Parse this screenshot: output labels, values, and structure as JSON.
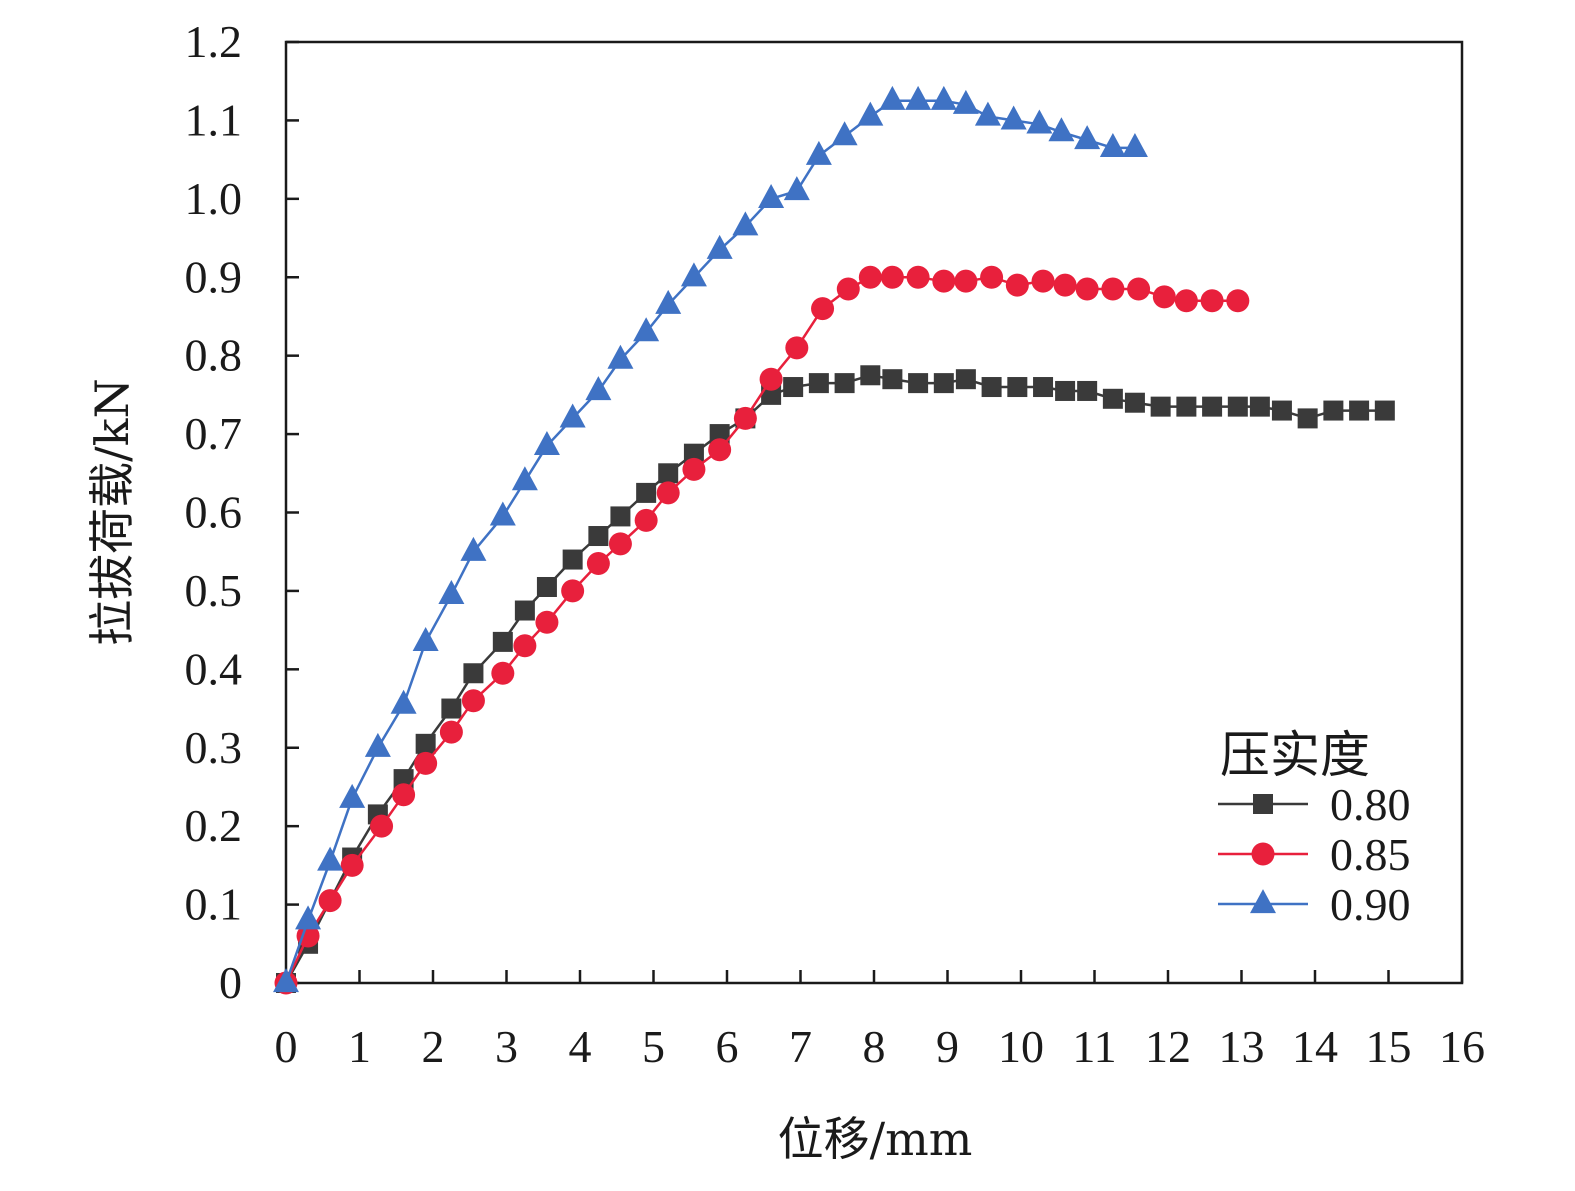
{
  "chart_data": {
    "type": "line",
    "xlabel": "位移/mm",
    "ylabel": "拉拔荷载/kN",
    "xlim": [
      0,
      16
    ],
    "ylim": [
      0,
      1.2
    ],
    "x_ticks": [
      "0",
      "1",
      "2",
      "3",
      "4",
      "5",
      "6",
      "7",
      "8",
      "9",
      "10",
      "11",
      "12",
      "13",
      "14",
      "15",
      "16"
    ],
    "y_ticks": [
      "0",
      "0.1",
      "0.2",
      "0.3",
      "0.4",
      "0.5",
      "0.6",
      "0.7",
      "0.8",
      "0.9",
      "1.0",
      "1.1",
      "1.2"
    ],
    "grid": false,
    "legend_title": "压实度",
    "legend_position": "bottom-right",
    "series": [
      {
        "name": "0.80",
        "color": "#3a3a3a",
        "marker": "square",
        "x": [
          0,
          0.3,
          0.9,
          1.25,
          1.6,
          1.9,
          2.25,
          2.55,
          2.95,
          3.25,
          3.55,
          3.9,
          4.25,
          4.55,
          4.9,
          5.2,
          5.55,
          5.9,
          6.25,
          6.6,
          6.9,
          7.25,
          7.6,
          7.95,
          8.25,
          8.6,
          8.95,
          9.25,
          9.6,
          9.95,
          10.3,
          10.6,
          10.9,
          11.25,
          11.55,
          11.9,
          12.25,
          12.6,
          12.95,
          13.25,
          13.55,
          13.9,
          14.25,
          14.6,
          14.95
        ],
        "y": [
          0,
          0.05,
          0.16,
          0.215,
          0.26,
          0.305,
          0.35,
          0.395,
          0.435,
          0.475,
          0.505,
          0.54,
          0.57,
          0.595,
          0.625,
          0.65,
          0.675,
          0.7,
          0.72,
          0.75,
          0.76,
          0.765,
          0.765,
          0.775,
          0.77,
          0.765,
          0.765,
          0.77,
          0.76,
          0.76,
          0.76,
          0.755,
          0.755,
          0.745,
          0.74,
          0.735,
          0.735,
          0.735,
          0.735,
          0.735,
          0.73,
          0.72,
          0.73,
          0.73,
          0.73
        ]
      },
      {
        "name": "0.85",
        "color": "#e8203c",
        "marker": "circle",
        "x": [
          0,
          0.3,
          0.6,
          0.9,
          1.3,
          1.6,
          1.9,
          2.25,
          2.55,
          2.95,
          3.25,
          3.55,
          3.9,
          4.25,
          4.55,
          4.9,
          5.2,
          5.55,
          5.9,
          6.25,
          6.6,
          6.95,
          7.3,
          7.65,
          7.95,
          8.25,
          8.6,
          8.95,
          9.25,
          9.6,
          9.95,
          10.3,
          10.6,
          10.9,
          11.25,
          11.6,
          11.95,
          12.25,
          12.6,
          12.95
        ],
        "y": [
          0,
          0.06,
          0.105,
          0.15,
          0.2,
          0.24,
          0.28,
          0.32,
          0.36,
          0.395,
          0.43,
          0.46,
          0.5,
          0.535,
          0.56,
          0.59,
          0.625,
          0.655,
          0.68,
          0.72,
          0.77,
          0.81,
          0.86,
          0.885,
          0.9,
          0.9,
          0.9,
          0.895,
          0.895,
          0.9,
          0.89,
          0.895,
          0.89,
          0.885,
          0.885,
          0.885,
          0.875,
          0.87,
          0.87,
          0.87
        ]
      },
      {
        "name": "0.90",
        "color": "#3f72c4",
        "marker": "triangle",
        "x": [
          0,
          0.3,
          0.6,
          0.9,
          1.25,
          1.6,
          1.9,
          2.25,
          2.55,
          2.95,
          3.25,
          3.55,
          3.9,
          4.25,
          4.55,
          4.9,
          5.2,
          5.55,
          5.9,
          6.25,
          6.6,
          6.95,
          7.25,
          7.6,
          7.95,
          8.25,
          8.6,
          8.95,
          9.25,
          9.55,
          9.9,
          10.25,
          10.55,
          10.9,
          11.25,
          11.55
        ],
        "y": [
          0,
          0.08,
          0.155,
          0.235,
          0.3,
          0.355,
          0.435,
          0.495,
          0.55,
          0.595,
          0.64,
          0.685,
          0.72,
          0.755,
          0.795,
          0.83,
          0.865,
          0.9,
          0.935,
          0.965,
          1.0,
          1.01,
          1.055,
          1.08,
          1.105,
          1.125,
          1.125,
          1.125,
          1.12,
          1.105,
          1.1,
          1.095,
          1.085,
          1.075,
          1.065,
          1.065
        ]
      }
    ]
  }
}
